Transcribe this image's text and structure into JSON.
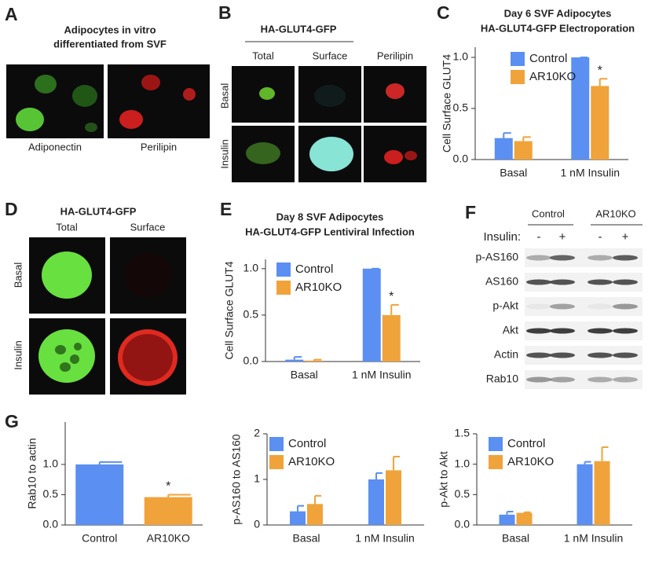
{
  "panel_labels": [
    "A",
    "B",
    "C",
    "D",
    "E",
    "F",
    "G"
  ],
  "panel_a": {
    "title": [
      "Adipocytes in vitro",
      "differentiated from SVF"
    ],
    "captions": [
      "Adiponectin",
      "Perilipin"
    ]
  },
  "panel_b": {
    "title": "HA-GLUT4-GFP",
    "columns": [
      "Total",
      "Surface",
      "Perilipin"
    ],
    "rows": [
      "Basal",
      "Insulin"
    ]
  },
  "panel_d": {
    "title": "HA-GLUT4-GFP",
    "columns": [
      "Total",
      "Surface"
    ],
    "rows": [
      "Basal",
      "Insulin"
    ]
  },
  "panel_f": {
    "groups": [
      "Control",
      "AR10KO"
    ],
    "treatment": "Insulin:",
    "signs": [
      "-",
      "+",
      "-",
      "+"
    ],
    "rows": [
      "p-AS160",
      "AS160",
      "p-Akt",
      "Akt",
      "Actin",
      "Rab10"
    ]
  },
  "chart_data": [
    {
      "type": "bar",
      "title": [
        "Day 6 SVF Adipocytes",
        "HA-GLUT4-GFP Electroporation"
      ],
      "ylabel": "Cell Surface GLUT4",
      "categories": [
        "Basal",
        "1 nM Insulin"
      ],
      "series": [
        {
          "name": "Control",
          "color": "#5b8ff2",
          "values": [
            0.21,
            1.0
          ],
          "errors": [
            0.05,
            0
          ]
        },
        {
          "name": "AR10KO",
          "color": "#f0a33a",
          "values": [
            0.18,
            0.72
          ],
          "errors": [
            0.04,
            0.07
          ]
        }
      ],
      "annotation": "*",
      "ylim": [
        0,
        1.1
      ],
      "yticks": [
        {
          "value": 0,
          "label": "0.0"
        },
        0.5,
        {
          "value": 1,
          "label": "1.0"
        }
      ]
    },
    {
      "type": "bar",
      "title": [
        "Day 8 SVF Adipocytes",
        "HA-GLUT4-GFP Lentiviral Infection"
      ],
      "ylabel": "Cell Surface GLUT4",
      "categories": [
        "Basal",
        "1 nM Insulin"
      ],
      "series": [
        {
          "name": "Control",
          "color": "#5b8ff2",
          "values": [
            0.02,
            1.0
          ],
          "errors": [
            0.03,
            0
          ]
        },
        {
          "name": "AR10KO",
          "color": "#f0a33a",
          "values": [
            0.01,
            0.5
          ],
          "errors": [
            0.01,
            0.11
          ]
        }
      ],
      "annotation": "*",
      "ylim": [
        0,
        1.1
      ],
      "yticks": [
        {
          "value": 0,
          "label": "0.0"
        },
        0.5,
        {
          "value": 1,
          "label": "1.0"
        }
      ]
    },
    {
      "type": "bar",
      "ylabel": "Rab10 to actin",
      "categories": [
        "Control",
        "AR10KO"
      ],
      "values": [
        1.0,
        0.46
      ],
      "errors": [
        0.04,
        0.04
      ],
      "colors": [
        "#5b8ff2",
        "#f0a33a"
      ],
      "annotation": "*",
      "ylim": [
        0,
        1.7
      ],
      "yticks": [
        {
          "value": 0,
          "label": "0.0"
        },
        0.5,
        {
          "value": 1,
          "label": "1.0"
        }
      ]
    },
    {
      "type": "bar",
      "ylabel": "p-AS160 to AS160",
      "categories": [
        "Basal",
        "1 nM Insulin"
      ],
      "series": [
        {
          "name": "Control",
          "color": "#5b8ff2",
          "values": [
            0.3,
            1.0
          ],
          "errors": [
            0.12,
            0.14
          ]
        },
        {
          "name": "AR10KO",
          "color": "#f0a33a",
          "values": [
            0.46,
            1.2
          ],
          "errors": [
            0.18,
            0.3
          ]
        }
      ],
      "ylim": [
        0,
        2
      ],
      "yticks": [
        0,
        1,
        2
      ]
    },
    {
      "type": "bar",
      "ylabel": "p-Akt to Akt",
      "categories": [
        "Basal",
        "1 nM Insulin"
      ],
      "series": [
        {
          "name": "Control",
          "color": "#5b8ff2",
          "values": [
            0.17,
            1.0
          ],
          "errors": [
            0.05,
            0.04
          ]
        },
        {
          "name": "AR10KO",
          "color": "#f0a33a",
          "values": [
            0.2,
            1.05
          ],
          "errors": [
            0.01,
            0.23
          ]
        }
      ],
      "ylim": [
        0,
        1.5
      ],
      "yticks": [
        {
          "value": 0,
          "label": "0.0"
        },
        0.5,
        {
          "value": 1,
          "label": "1.0"
        },
        1.5
      ]
    }
  ]
}
